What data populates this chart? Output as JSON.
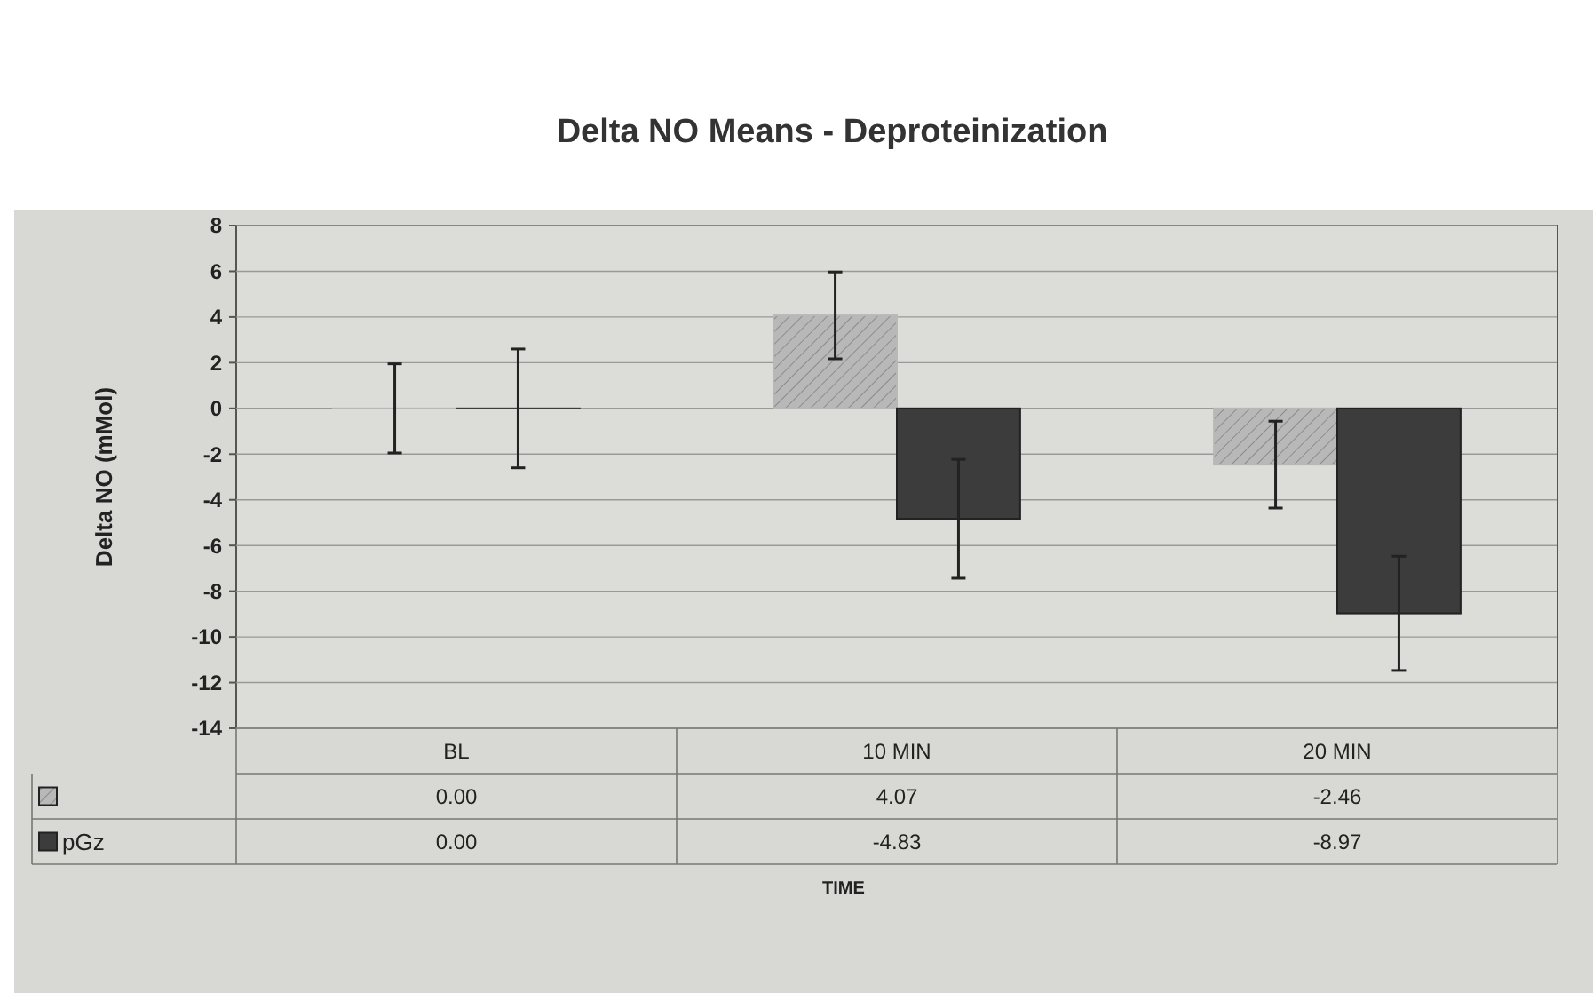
{
  "chart_data": {
    "type": "bar",
    "title": "Delta NO Means - Deproteinization",
    "annotations": [
      "TIME"
    ],
    "ylabel": "Delta NO (mMol)",
    "categories": [
      "BL",
      "10 MIN",
      "20 MIN"
    ],
    "series": [
      {
        "color": "#b8b8b8",
        "values": [
          0,
          4.07,
          -2.46
        ],
        "errors": [
          1.95,
          1.9,
          1.9
        ],
        "value_labels": [
          "0.00",
          "4.07",
          "-2.46"
        ]
      },
      {
        "name": "pGz",
        "color": "#3c3c3c",
        "values": [
          0,
          -4.83,
          -8.97
        ],
        "errors": [
          2.6,
          2.6,
          2.5
        ],
        "value_labels": [
          "0.00",
          "-4.83",
          "-8.97"
        ]
      }
    ],
    "ylim": [
      -14,
      8
    ],
    "yticks": [
      -14,
      -12,
      -10,
      -8,
      -6,
      -4,
      -2,
      0,
      2,
      4,
      6,
      8
    ],
    "grid": "y",
    "legend": "bottom left"
  }
}
